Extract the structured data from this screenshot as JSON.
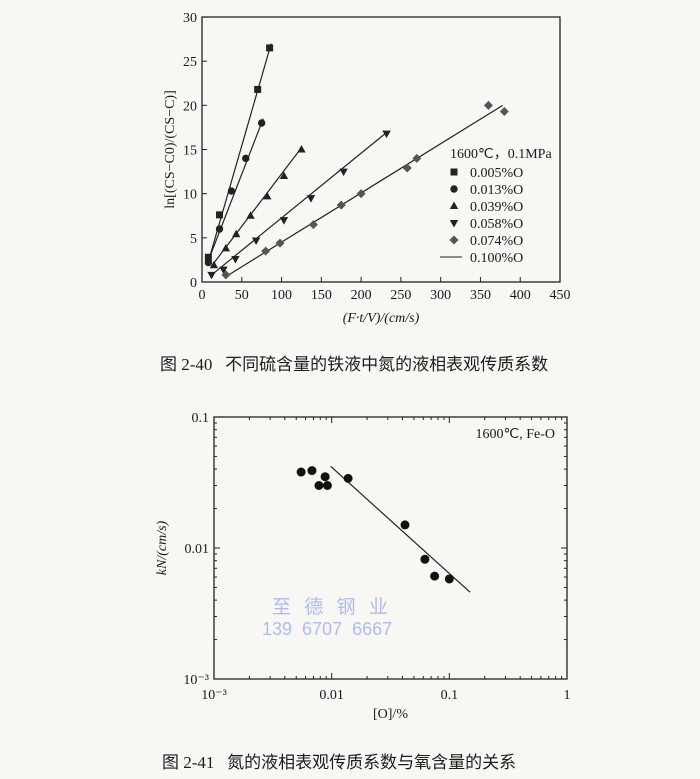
{
  "figures": [
    {
      "caption_number": "图 2-40",
      "caption_text": "不同硫含量的铁液中氮的液相表观传质系数"
    },
    {
      "caption_number": "图 2-41",
      "caption_text": "氮的液相表观传质系数与氧含量的关系"
    }
  ],
  "watermark": {
    "name": "至 德 钢 业",
    "phone": "139  6707  6667",
    "color": "#aebcf0"
  },
  "chart_data": [
    {
      "type": "scatter",
      "xlabel": "(F·t/V)/(cm/s)",
      "ylabel": "ln[(CS−C0)/(CS−C)]",
      "xlim": [
        0,
        450
      ],
      "ylim": [
        0,
        30
      ],
      "xticks": [
        0,
        50,
        100,
        150,
        200,
        250,
        300,
        350,
        400,
        450
      ],
      "yticks": [
        0,
        5,
        10,
        15,
        20,
        25,
        30
      ],
      "grid": false,
      "legend_title": "1600℃，0.1MPa",
      "legend_placement": "right",
      "series": [
        {
          "name": "0.005%O",
          "marker": "square",
          "points": [
            [
              8,
              2.8
            ],
            [
              22,
              7.6
            ],
            [
              70,
              21.8
            ],
            [
              85,
              26.5
            ]
          ],
          "fit": [
            [
              7,
              2.0
            ],
            [
              87,
              27.0
            ]
          ]
        },
        {
          "name": "0.013%O",
          "marker": "circle",
          "points": [
            [
              8,
              2.2
            ],
            [
              22,
              6.0
            ],
            [
              37,
              10.3
            ],
            [
              55,
              14.0
            ],
            [
              75,
              18.0
            ]
          ],
          "fit": [
            [
              7,
              2.2
            ],
            [
              77,
              18.5
            ]
          ]
        },
        {
          "name": "0.039%O",
          "marker": "triangle-up",
          "points": [
            [
              15,
              1.9
            ],
            [
              30,
              3.8
            ],
            [
              43,
              5.4
            ],
            [
              61,
              7.5
            ],
            [
              82,
              9.7
            ],
            [
              103,
              12.0
            ],
            [
              125,
              15.0
            ]
          ],
          "fit": [
            [
              12,
              1.8
            ],
            [
              125,
              15.2
            ]
          ]
        },
        {
          "name": "0.058%O",
          "marker": "triangle-down",
          "points": [
            [
              12,
              0.8
            ],
            [
              27,
              1.4
            ],
            [
              42,
              2.6
            ],
            [
              68,
              4.7
            ],
            [
              103,
              7.0
            ],
            [
              137,
              9.5
            ],
            [
              178,
              12.5
            ],
            [
              232,
              16.8
            ]
          ],
          "fit": [
            [
              12,
              0.8
            ],
            [
              233,
              17.0
            ]
          ]
        },
        {
          "name": "0.074%O",
          "marker": "diamond",
          "points": [
            [
              30,
              0.8
            ],
            [
              80,
              3.5
            ],
            [
              98,
              4.4
            ],
            [
              140,
              6.5
            ],
            [
              175,
              8.7
            ],
            [
              200,
              10.0
            ],
            [
              258,
              12.9
            ],
            [
              270,
              14.0
            ],
            [
              360,
              20.0
            ],
            [
              380,
              19.3
            ]
          ],
          "fit": [
            [
              28,
              0.5
            ],
            [
              378,
              20.0
            ]
          ]
        },
        {
          "name": "0.100%O",
          "marker": "line",
          "points": [],
          "fit": []
        }
      ]
    },
    {
      "type": "scatter",
      "xlabel": "[O]/%",
      "ylabel": "kN/(cm/s)",
      "xscale": "log",
      "yscale": "log",
      "xlim": [
        0.001,
        1
      ],
      "ylim": [
        0.001,
        0.1
      ],
      "xticks": [
        "10^-3",
        "0.01",
        "0.1",
        "1"
      ],
      "yticks": [
        "10^-3",
        "0.01",
        "0.1"
      ],
      "grid": false,
      "annotation": "1600℃, Fe-O",
      "points": [
        [
          0.0055,
          0.038
        ],
        [
          0.0068,
          0.039
        ],
        [
          0.0078,
          0.03
        ],
        [
          0.0088,
          0.035
        ],
        [
          0.0092,
          0.03
        ],
        [
          0.0138,
          0.034
        ],
        [
          0.042,
          0.015
        ],
        [
          0.062,
          0.0082
        ],
        [
          0.075,
          0.0061
        ],
        [
          0.1,
          0.0058
        ]
      ],
      "fit": [
        [
          0.0098,
          0.042
        ],
        [
          0.15,
          0.0046
        ]
      ]
    }
  ]
}
